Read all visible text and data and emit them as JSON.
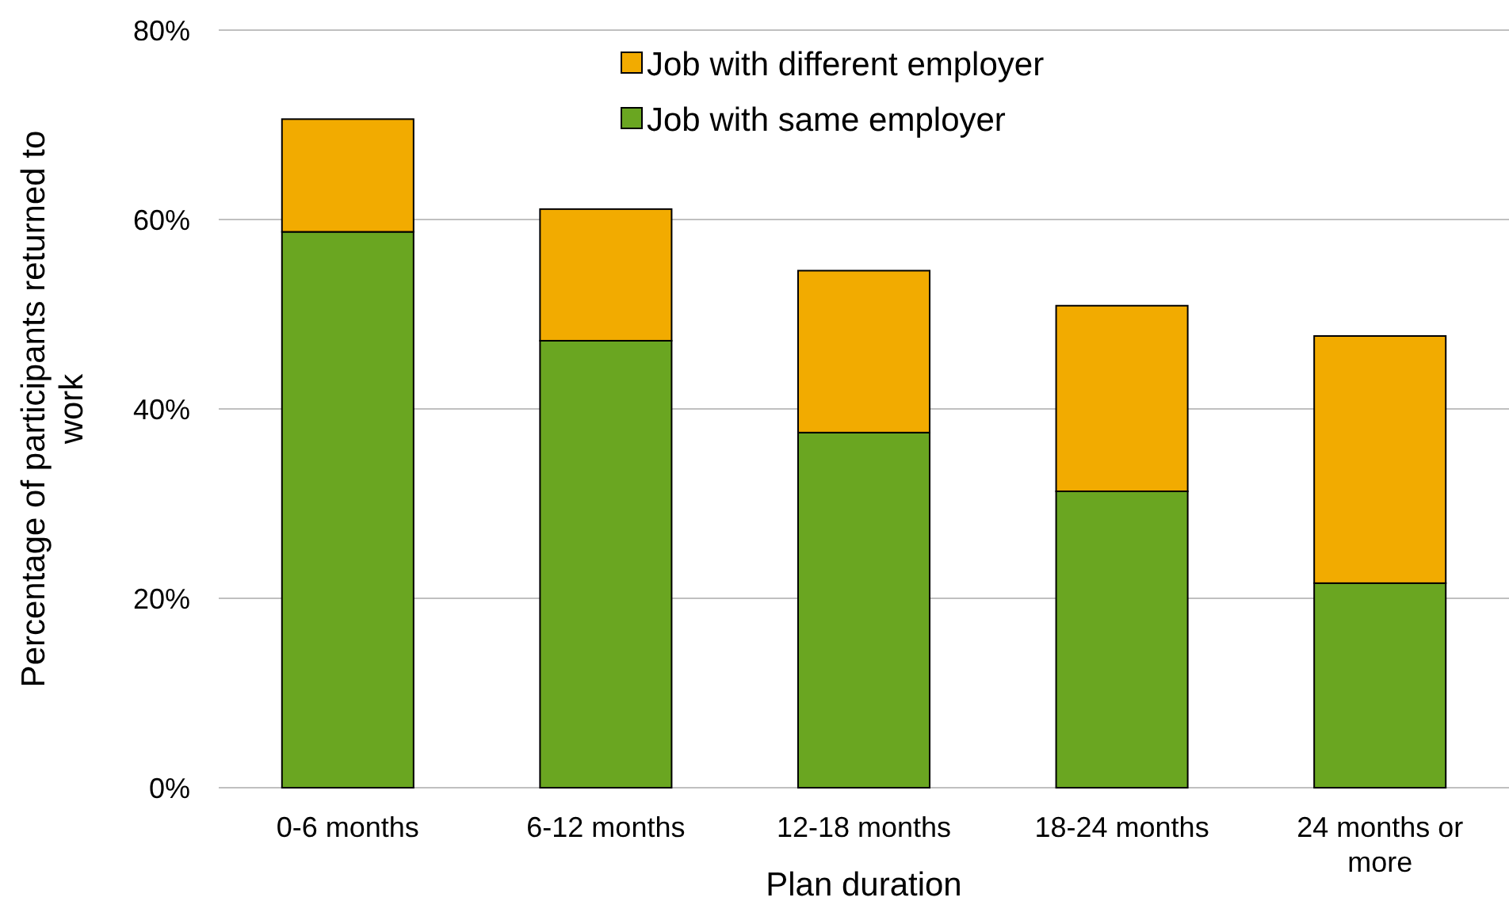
{
  "chart_data": {
    "type": "bar",
    "stacked": true,
    "xlabel": "Plan duration",
    "ylabel": "Percentage of participants returned to work",
    "categories": [
      "0-6 months",
      "6-12 months",
      "12-18 months",
      "18-24 months",
      "24 months or more"
    ],
    "series": [
      {
        "name": "Job with same employer",
        "color": "#6aa621",
        "values": [
          58.7,
          47.2,
          37.5,
          31.3,
          21.6
        ]
      },
      {
        "name": "Job with different employer",
        "color": "#f2ab00",
        "values": [
          11.9,
          13.9,
          17.1,
          19.6,
          26.1
        ]
      }
    ],
    "ylim": [
      0,
      80
    ],
    "yticks": [
      {
        "value": 0,
        "label": "0%"
      },
      {
        "value": 20,
        "label": "20%"
      },
      {
        "value": 40,
        "label": "40%"
      },
      {
        "value": 60,
        "label": "60%"
      },
      {
        "value": 80,
        "label": "80%"
      }
    ],
    "grid": "y",
    "legend": "top"
  }
}
